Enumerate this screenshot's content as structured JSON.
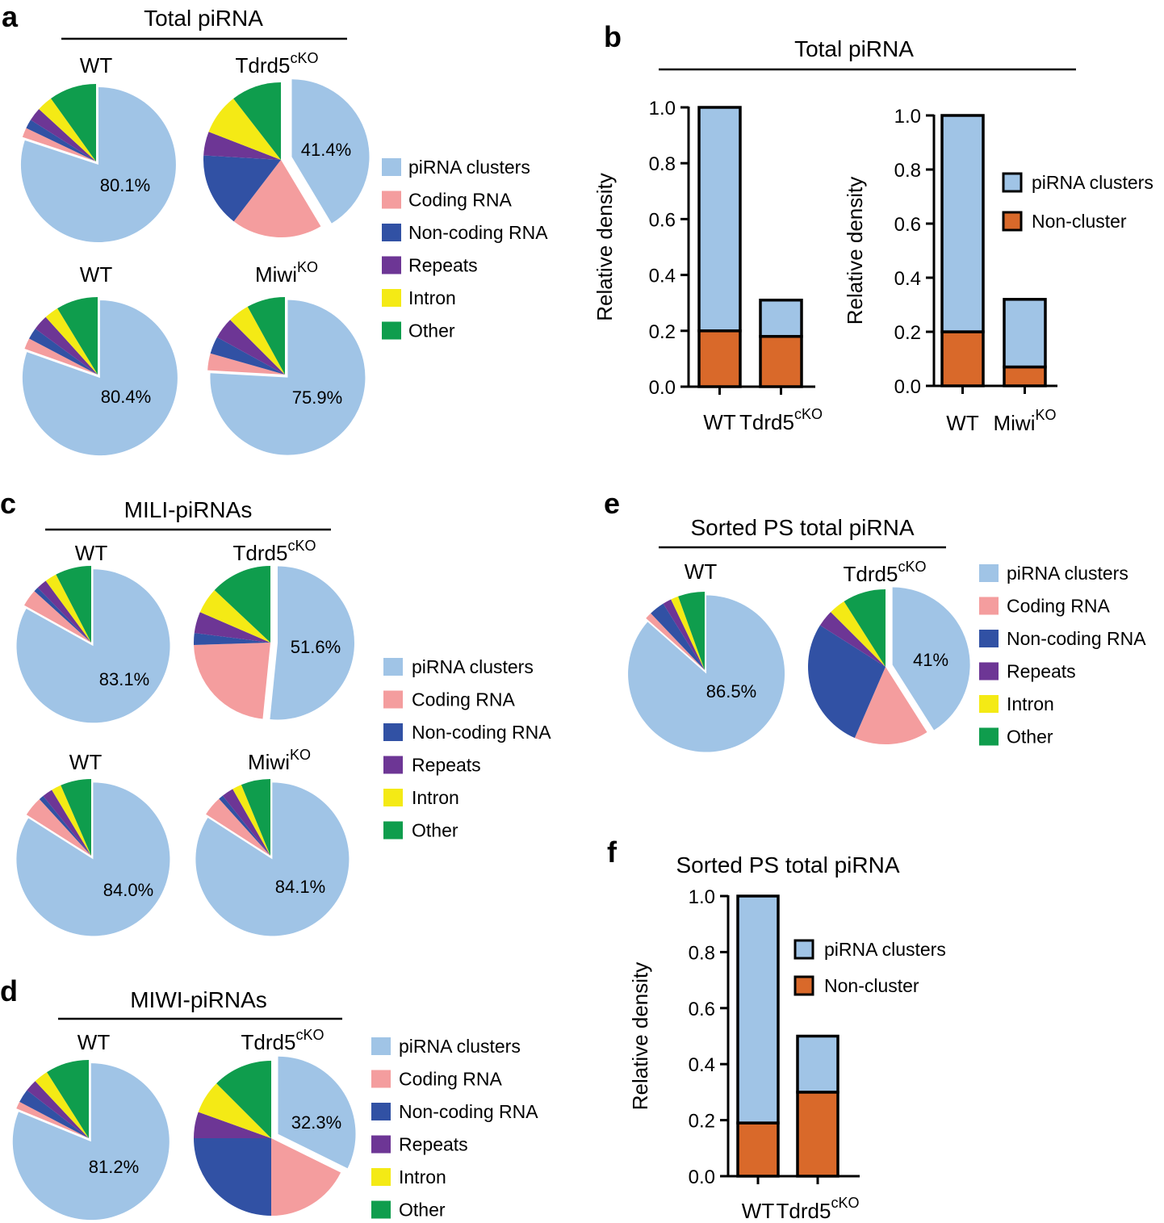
{
  "colors": {
    "piRNA clusters": "#a0c4e6",
    "Coding RNA": "#f49d9e",
    "Non-coding RNA": "#3151a4",
    "Repeats": "#6d3695",
    "Intron": "#f4ea15",
    "Other": "#0f9d4d",
    "Non-cluster": "#d9692a"
  },
  "panels": {
    "a": {
      "letter": "a",
      "title": "Total piRNA"
    },
    "b": {
      "letter": "b",
      "title": "Total piRNA"
    },
    "c": {
      "letter": "c",
      "title": "MILI-piRNAs"
    },
    "d": {
      "letter": "d",
      "title": "MIWI-piRNAs"
    },
    "e": {
      "letter": "e",
      "title": "Sorted PS total piRNA"
    },
    "f": {
      "letter": "f",
      "title": "Sorted PS total piRNA"
    }
  },
  "chart_data": [
    {
      "panel": "a",
      "type": "pie",
      "title": "Total piRNA",
      "legend": [
        "piRNA clusters",
        "Coding RNA",
        "Non-coding RNA",
        "Repeats",
        "Intron",
        "Other"
      ],
      "pies": [
        {
          "label": "WT",
          "sup": "",
          "pct_label": "80.1%",
          "values": [
            80.1,
            2.0,
            1.9,
            2.8,
            3.3,
            9.9
          ]
        },
        {
          "label": "Tdrd5",
          "sup": "cKO",
          "pct_label": "41.4%",
          "values": [
            41.4,
            19.0,
            15.5,
            5.0,
            8.6,
            10.5
          ]
        },
        {
          "label": "WT",
          "sup": "",
          "pct_label": "80.4%",
          "values": [
            80.4,
            2.3,
            2.4,
            3.2,
            3.0,
            8.7
          ]
        },
        {
          "label": "Miwi",
          "sup": "KO",
          "pct_label": "75.9%",
          "values": [
            75.9,
            3.5,
            3.6,
            4.5,
            4.5,
            8.0
          ]
        }
      ]
    },
    {
      "panel": "b",
      "type": "bar",
      "stacked": true,
      "title": "Total piRNA",
      "ylabel": "Relative density",
      "ylim": [
        0,
        1.0
      ],
      "yticks": [
        "0.0",
        "0.2",
        "0.4",
        "0.6",
        "0.8",
        "1.0"
      ],
      "legend": [
        "piRNA clusters",
        "Non-cluster"
      ],
      "groups": [
        {
          "categories": [
            {
              "label": "WT",
              "sup": ""
            },
            {
              "label": "Tdrd5",
              "sup": "cKO"
            }
          ],
          "series": [
            {
              "name": "Non-cluster",
              "values": [
                0.2,
                0.18
              ]
            },
            {
              "name": "piRNA clusters",
              "values": [
                0.8,
                0.13
              ]
            }
          ]
        },
        {
          "categories": [
            {
              "label": "WT",
              "sup": ""
            },
            {
              "label": "Miwi",
              "sup": "KO"
            }
          ],
          "series": [
            {
              "name": "Non-cluster",
              "values": [
                0.2,
                0.07
              ]
            },
            {
              "name": "piRNA clusters",
              "values": [
                0.8,
                0.25
              ]
            }
          ]
        }
      ]
    },
    {
      "panel": "c",
      "type": "pie",
      "title": "MILI-piRNAs",
      "legend": [
        "piRNA clusters",
        "Coding RNA",
        "Non-coding RNA",
        "Repeats",
        "Intron",
        "Other"
      ],
      "pies": [
        {
          "label": "WT",
          "sup": "",
          "pct_label": "83.1%",
          "values": [
            83.1,
            3.6,
            1.0,
            2.2,
            2.5,
            7.6
          ]
        },
        {
          "label": "Tdrd5",
          "sup": "cKO",
          "pct_label": "51.6%",
          "values": [
            51.6,
            22.9,
            2.5,
            4.5,
            5.5,
            13.0
          ]
        },
        {
          "label": "WT",
          "sup": "",
          "pct_label": "84.0%",
          "values": [
            84.0,
            4.2,
            1.0,
            2.2,
            2.1,
            6.5
          ]
        },
        {
          "label": "Miwi",
          "sup": "KO",
          "pct_label": "84.1%",
          "values": [
            84.1,
            4.2,
            1.0,
            2.5,
            2.0,
            6.2
          ]
        }
      ]
    },
    {
      "panel": "d",
      "type": "pie",
      "title": "MIWI-piRNAs",
      "legend": [
        "piRNA clusters",
        "Coding RNA",
        "Non-coding RNA",
        "Repeats",
        "Intron",
        "Other"
      ],
      "pies": [
        {
          "label": "WT",
          "sup": "",
          "pct_label": "81.2%",
          "values": [
            81.2,
            1.5,
            2.8,
            2.5,
            3.0,
            9.0
          ]
        },
        {
          "label": "Tdrd5",
          "sup": "cKO",
          "pct_label": "32.3%",
          "values": [
            32.3,
            17.7,
            25.0,
            5.5,
            7.0,
            12.5
          ]
        }
      ]
    },
    {
      "panel": "e",
      "type": "pie",
      "title": "Sorted PS total piRNA",
      "legend": [
        "piRNA clusters",
        "Coding RNA",
        "Non-coding RNA",
        "Repeats",
        "Intron",
        "Other"
      ],
      "pies": [
        {
          "label": "WT",
          "sup": "",
          "pct_label": "86.5%",
          "values": [
            86.5,
            1.4,
            3.2,
            1.8,
            1.6,
            5.5
          ]
        },
        {
          "label": "Tdrd5",
          "sup": "cKO",
          "pct_label": "41%",
          "values": [
            41.0,
            15.5,
            27.5,
            3.5,
            3.5,
            9.0
          ]
        }
      ]
    },
    {
      "panel": "f",
      "type": "bar",
      "stacked": true,
      "title": "Sorted PS total piRNA",
      "ylabel": "Relative density",
      "ylim": [
        0,
        1.0
      ],
      "yticks": [
        "0.0",
        "0.2",
        "0.4",
        "0.6",
        "0.8",
        "1.0"
      ],
      "legend": [
        "piRNA clusters",
        "Non-cluster"
      ],
      "groups": [
        {
          "categories": [
            {
              "label": "WT",
              "sup": ""
            },
            {
              "label": "Tdrd5",
              "sup": "cKO"
            }
          ],
          "series": [
            {
              "name": "Non-cluster",
              "values": [
                0.19,
                0.3
              ]
            },
            {
              "name": "piRNA clusters",
              "values": [
                0.81,
                0.2
              ]
            }
          ]
        }
      ]
    }
  ]
}
